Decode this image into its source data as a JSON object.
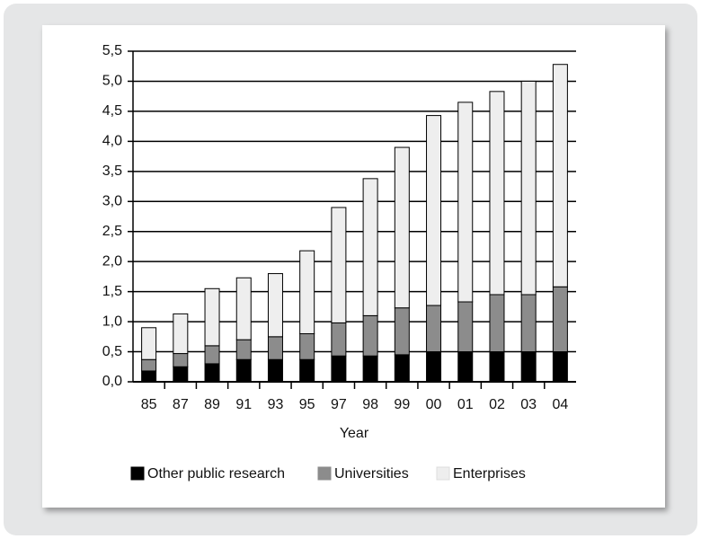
{
  "chart_data": {
    "type": "stacked_bar",
    "x_label": "Year",
    "categories": [
      "85",
      "87",
      "89",
      "91",
      "93",
      "95",
      "97",
      "98",
      "99",
      "00",
      "01",
      "02",
      "03",
      "04"
    ],
    "series": [
      {
        "name": "Other public research",
        "color": "#000000",
        "values": [
          0.18,
          0.25,
          0.3,
          0.37,
          0.37,
          0.37,
          0.43,
          0.43,
          0.45,
          0.5,
          0.5,
          0.5,
          0.5,
          0.5
        ]
      },
      {
        "name": "Universities",
        "color": "#8c8c8c",
        "values": [
          0.19,
          0.22,
          0.3,
          0.33,
          0.38,
          0.43,
          0.55,
          0.67,
          0.78,
          0.77,
          0.83,
          0.95,
          0.95,
          1.08
        ]
      },
      {
        "name": "Enterprises",
        "color": "#eeeeee",
        "values": [
          0.53,
          0.66,
          0.95,
          1.03,
          1.05,
          1.38,
          1.92,
          2.28,
          2.67,
          3.16,
          3.32,
          3.38,
          3.55,
          3.7
        ]
      }
    ],
    "ylim": [
      0,
      5.5
    ],
    "yticks": [
      {
        "value": 0,
        "label": "0,0"
      },
      {
        "value": 0.5,
        "label": "0,5"
      },
      {
        "value": 1,
        "label": "1,0"
      },
      {
        "value": 1.5,
        "label": "1,5"
      },
      {
        "value": 2,
        "label": "2,0"
      },
      {
        "value": 2.5,
        "label": "2,5"
      },
      {
        "value": 3,
        "label": "3,0"
      },
      {
        "value": 3.5,
        "label": "3,5"
      },
      {
        "value": 4,
        "label": "4,0"
      },
      {
        "value": 4.5,
        "label": "4,5"
      },
      {
        "value": 5,
        "label": "5,0"
      },
      {
        "value": 5.5,
        "label": "5,5"
      }
    ],
    "grid": true,
    "legend": "bottom"
  }
}
